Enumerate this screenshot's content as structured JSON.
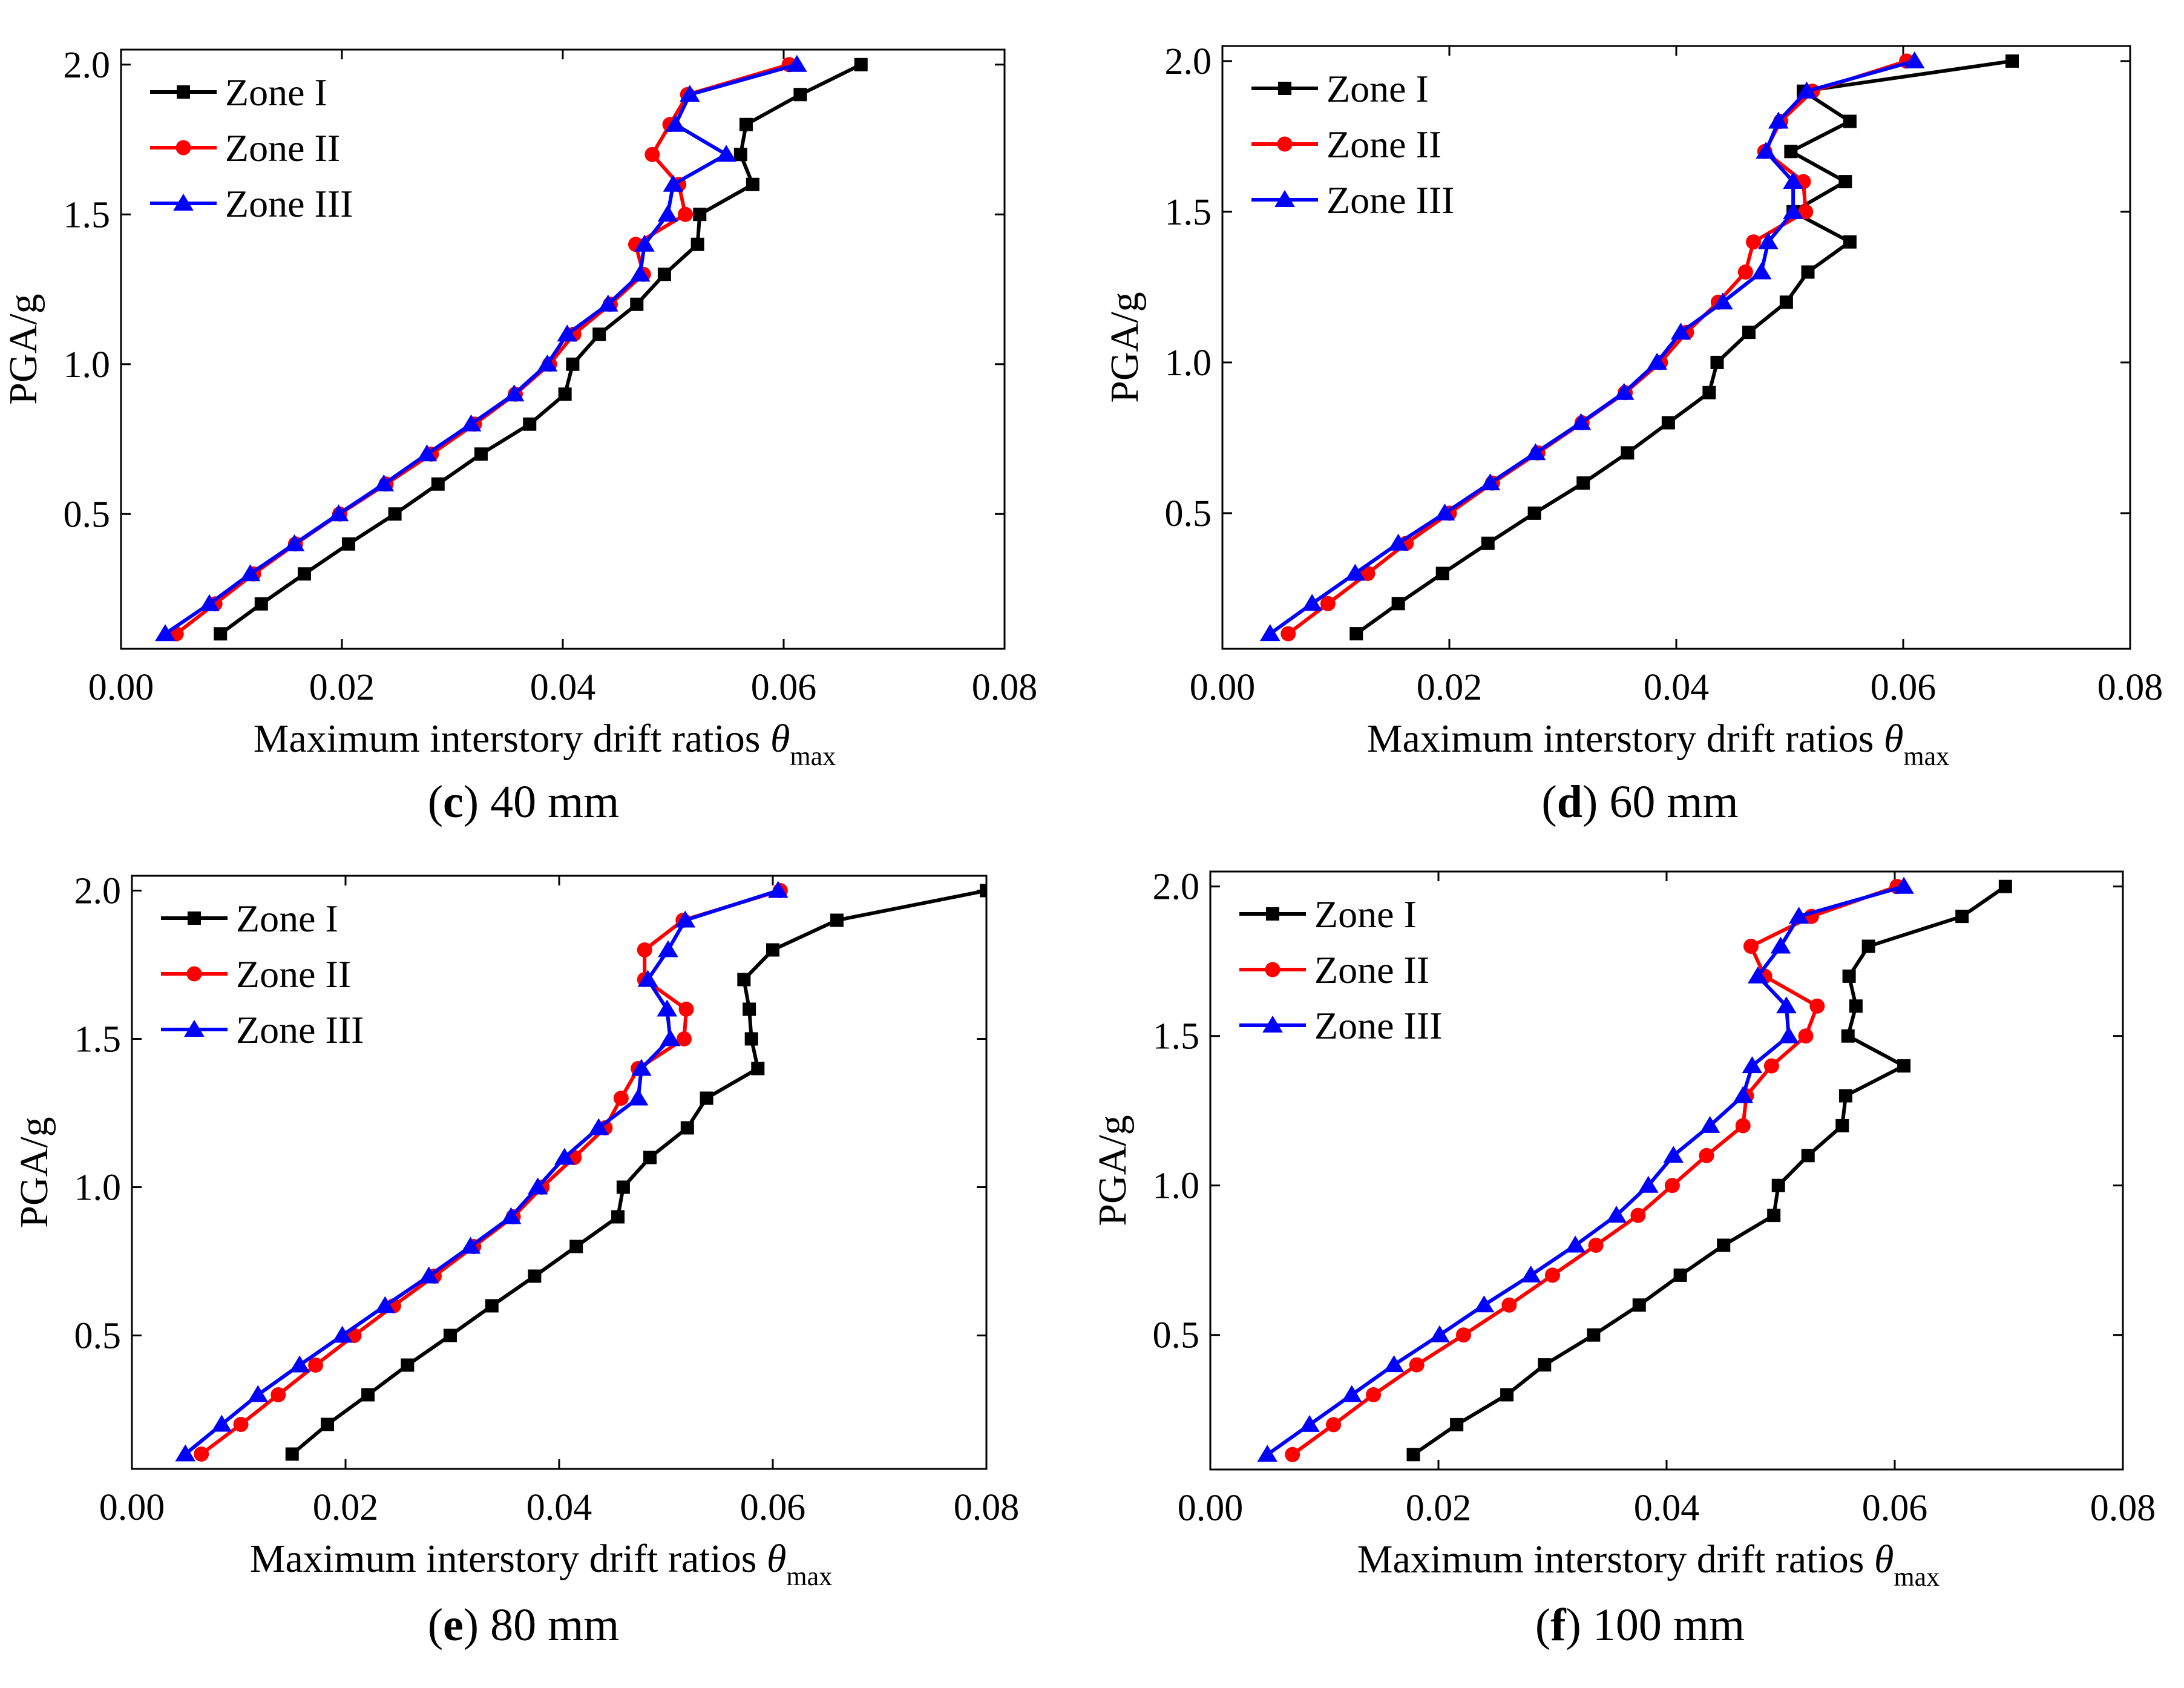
{
  "figure": {
    "ylabel": "PGA/g",
    "xlabel_main": "Maximum interstory drift ratios ",
    "xlabel_symbol": "θ",
    "xlabel_sub": "max",
    "colors": {
      "Zone I": "#000000",
      "Zone II": "#ff0000",
      "Zone III": "#0000ff"
    },
    "markers": {
      "Zone I": "square",
      "Zone II": "circle",
      "Zone III": "triangle"
    }
  },
  "chart_data": [
    {
      "type": "line",
      "caption_letter": "c",
      "caption_text": " 40 mm",
      "xlim": [
        0,
        0.08
      ],
      "ylim": [
        0.05,
        2.05
      ],
      "xticks": [
        "0.00",
        "0.02",
        "0.04",
        "0.06",
        "0.08"
      ],
      "yticks": [
        "0.5",
        "1.0",
        "1.5",
        "2.0"
      ],
      "legend": [
        "Zone I",
        "Zone II",
        "Zone III"
      ],
      "y": [
        0.1,
        0.2,
        0.3,
        0.4,
        0.5,
        0.6,
        0.7,
        0.8,
        0.9,
        1.0,
        1.1,
        1.2,
        1.3,
        1.4,
        1.5,
        1.6,
        1.7,
        1.8,
        1.9,
        2.0
      ],
      "series": [
        {
          "name": "Zone I",
          "values": [
            0.009,
            0.0127,
            0.0166,
            0.0206,
            0.0248,
            0.0287,
            0.0326,
            0.037,
            0.0402,
            0.0409,
            0.0433,
            0.0467,
            0.0492,
            0.0522,
            0.0524,
            0.0572,
            0.0561,
            0.0566,
            0.0615,
            0.067
          ]
        },
        {
          "name": "Zone II",
          "values": [
            0.005,
            0.0085,
            0.012,
            0.0158,
            0.0198,
            0.024,
            0.0281,
            0.032,
            0.0357,
            0.0388,
            0.041,
            0.0443,
            0.0473,
            0.0466,
            0.0511,
            0.0505,
            0.0481,
            0.0497,
            0.0513,
            0.0605
          ]
        },
        {
          "name": "Zone III",
          "values": [
            0.004,
            0.008,
            0.0117,
            0.0157,
            0.0197,
            0.0238,
            0.0277,
            0.0317,
            0.0356,
            0.0386,
            0.0404,
            0.0441,
            0.047,
            0.0474,
            0.0495,
            0.05,
            0.0548,
            0.0502,
            0.0515,
            0.0612
          ]
        }
      ]
    },
    {
      "type": "line",
      "caption_letter": "d",
      "caption_text": " 60 mm",
      "xlim": [
        0,
        0.08
      ],
      "ylim": [
        0.05,
        2.05
      ],
      "xticks": [
        "0.00",
        "0.02",
        "0.04",
        "0.06",
        "0.08"
      ],
      "yticks": [
        "0.5",
        "1.0",
        "1.5",
        "2.0"
      ],
      "legend": [
        "Zone I",
        "Zone II",
        "Zone III"
      ],
      "y": [
        0.1,
        0.2,
        0.3,
        0.4,
        0.5,
        0.6,
        0.7,
        0.8,
        0.9,
        1.0,
        1.1,
        1.2,
        1.3,
        1.4,
        1.5,
        1.6,
        1.7,
        1.8,
        1.9,
        2.0
      ],
      "series": [
        {
          "name": "Zone I",
          "values": [
            0.0118,
            0.0155,
            0.0194,
            0.0234,
            0.0275,
            0.0318,
            0.0357,
            0.0393,
            0.0429,
            0.0436,
            0.0464,
            0.0497,
            0.0516,
            0.0553,
            0.0503,
            0.0549,
            0.0501,
            0.0553,
            0.0512,
            0.0696
          ]
        },
        {
          "name": "Zone II",
          "values": [
            0.0058,
            0.0093,
            0.0128,
            0.0162,
            0.02,
            0.0238,
            0.0278,
            0.0317,
            0.0355,
            0.0386,
            0.0409,
            0.0437,
            0.0461,
            0.0468,
            0.0514,
            0.0512,
            0.0478,
            0.0492,
            0.052,
            0.0603
          ]
        },
        {
          "name": "Zone III",
          "values": [
            0.0042,
            0.0079,
            0.0117,
            0.0155,
            0.0196,
            0.0236,
            0.0276,
            0.0316,
            0.0354,
            0.0383,
            0.0404,
            0.0441,
            0.0475,
            0.0481,
            0.0503,
            0.0503,
            0.0479,
            0.049,
            0.0515,
            0.061
          ]
        }
      ]
    },
    {
      "type": "line",
      "caption_letter": "e",
      "caption_text": " 80 mm",
      "xlim": [
        0,
        0.08
      ],
      "ylim": [
        0.05,
        2.05
      ],
      "xticks": [
        "0.00",
        "0.02",
        "0.04",
        "0.06",
        "0.08"
      ],
      "yticks": [
        "0.5",
        "1.0",
        "1.5",
        "2.0"
      ],
      "legend": [
        "Zone I",
        "Zone II",
        "Zone III"
      ],
      "y": [
        0.1,
        0.2,
        0.3,
        0.4,
        0.5,
        0.6,
        0.7,
        0.8,
        0.9,
        1.0,
        1.1,
        1.2,
        1.3,
        1.4,
        1.5,
        1.6,
        1.7,
        1.8,
        1.9,
        2.0
      ],
      "series": [
        {
          "name": "Zone I",
          "values": [
            0.015,
            0.0183,
            0.0221,
            0.0258,
            0.0298,
            0.0337,
            0.0377,
            0.0416,
            0.0455,
            0.046,
            0.0485,
            0.052,
            0.0538,
            0.0586,
            0.058,
            0.0578,
            0.0573,
            0.06,
            0.066,
            0.08
          ]
        },
        {
          "name": "Zone II",
          "values": [
            0.0065,
            0.0102,
            0.0137,
            0.0172,
            0.0208,
            0.0245,
            0.0283,
            0.032,
            0.0357,
            0.0384,
            0.0414,
            0.0443,
            0.0458,
            0.0474,
            0.0517,
            0.0519,
            0.048,
            0.048,
            0.0516,
            0.0607
          ]
        },
        {
          "name": "Zone III",
          "values": [
            0.005,
            0.0084,
            0.0118,
            0.0157,
            0.0197,
            0.0237,
            0.0278,
            0.0317,
            0.0355,
            0.038,
            0.0405,
            0.0437,
            0.0474,
            0.0477,
            0.0504,
            0.0501,
            0.0483,
            0.0502,
            0.0518,
            0.0605
          ]
        }
      ]
    },
    {
      "type": "line",
      "caption_letter": "f",
      "caption_text": " 100 mm",
      "xlim": [
        0,
        0.08
      ],
      "ylim": [
        0.05,
        2.05
      ],
      "xticks": [
        "0.00",
        "0.02",
        "0.04",
        "0.06",
        "0.08"
      ],
      "yticks": [
        "0.5",
        "1.0",
        "1.5",
        "2.0"
      ],
      "legend": [
        "Zone I",
        "Zone II",
        "Zone III"
      ],
      "y": [
        0.1,
        0.2,
        0.3,
        0.4,
        0.5,
        0.6,
        0.7,
        0.8,
        0.9,
        1.0,
        1.1,
        1.2,
        1.3,
        1.4,
        1.5,
        1.6,
        1.7,
        1.8,
        1.9,
        2.0
      ],
      "series": [
        {
          "name": "Zone I",
          "values": [
            0.0178,
            0.0216,
            0.026,
            0.0293,
            0.0336,
            0.0376,
            0.0412,
            0.045,
            0.0494,
            0.0498,
            0.0524,
            0.0554,
            0.0557,
            0.0608,
            0.0559,
            0.0566,
            0.056,
            0.0577,
            0.0659,
            0.0697
          ]
        },
        {
          "name": "Zone II",
          "values": [
            0.0072,
            0.0108,
            0.0143,
            0.0181,
            0.0222,
            0.0262,
            0.03,
            0.0338,
            0.0375,
            0.0405,
            0.0435,
            0.0467,
            0.047,
            0.0492,
            0.0522,
            0.0532,
            0.0486,
            0.0474,
            0.0527,
            0.0602
          ]
        },
        {
          "name": "Zone III",
          "values": [
            0.005,
            0.0087,
            0.0124,
            0.0161,
            0.0201,
            0.024,
            0.0281,
            0.032,
            0.0356,
            0.0384,
            0.0406,
            0.0438,
            0.0467,
            0.0475,
            0.0507,
            0.0505,
            0.048,
            0.05,
            0.0516,
            0.0608
          ]
        }
      ]
    }
  ]
}
